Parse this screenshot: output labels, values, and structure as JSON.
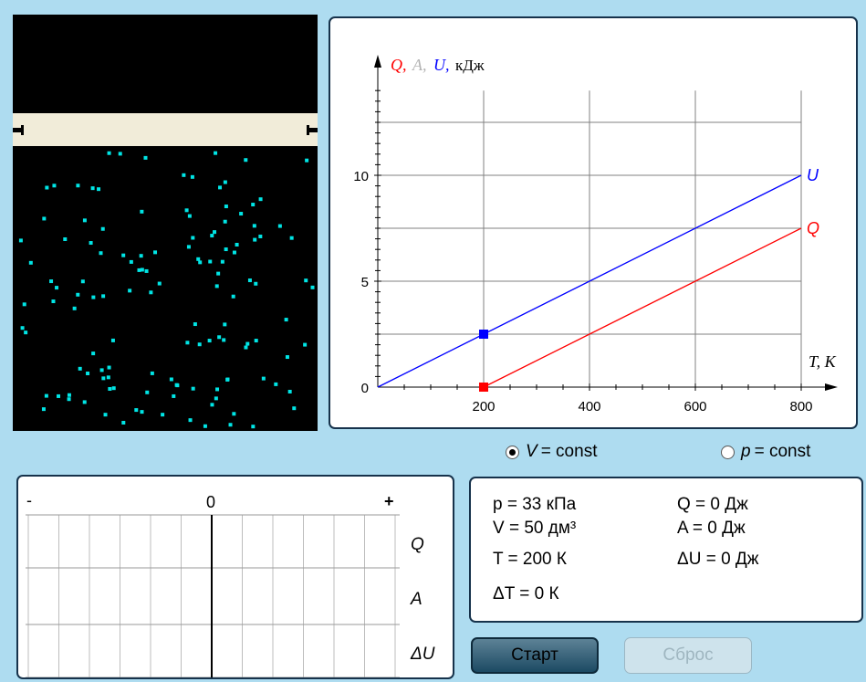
{
  "graph": {
    "y_label_q": "Q,",
    "y_label_a": "A,",
    "y_label_u": "U,",
    "y_label_unit": "кДж",
    "x_label": "T, К",
    "x_ticks": [
      "200",
      "400",
      "600",
      "800"
    ],
    "y_ticks": [
      "0",
      "5",
      "10"
    ],
    "label_u": "U",
    "label_q": "Q",
    "colors": {
      "Q": "#ff0000",
      "A": "#b4b4b4",
      "U": "#0000ff"
    }
  },
  "chart_data": {
    "type": "line",
    "xlim": [
      0,
      800
    ],
    "ylim": [
      0,
      14
    ],
    "grid": true,
    "series": [
      {
        "name": "U",
        "x": [
          0,
          800
        ],
        "y": [
          0,
          10
        ]
      },
      {
        "name": "Q",
        "x": [
          200,
          800
        ],
        "y": [
          0,
          7.5
        ]
      }
    ],
    "markers": [
      {
        "series": "U",
        "x": 200,
        "y": 2.5
      },
      {
        "series": "Q",
        "x": 200,
        "y": 0
      }
    ]
  },
  "modes": {
    "v_const": {
      "var": "V",
      "label": " = const",
      "selected": true
    },
    "p_const": {
      "var": "p",
      "label": " = const",
      "selected": false
    }
  },
  "bars": {
    "minus": "-",
    "zero": "0",
    "plus": "+",
    "rows": [
      "Q",
      "A",
      "ΔU"
    ],
    "values": {
      "Q": 0,
      "A": 0,
      "dU": 0
    }
  },
  "readouts": {
    "p": "p = 33 кПа",
    "V": "V = 50 дм³",
    "T": "T = 200 К",
    "dT": "ΔT = 0 К",
    "Q": "Q = 0 Дж",
    "A": "A = 0 Дж",
    "dU": "ΔU = 0 Дж"
  },
  "buttons": {
    "start": "Старт",
    "reset": "Сброс"
  },
  "particle_color": "#00e5e5"
}
